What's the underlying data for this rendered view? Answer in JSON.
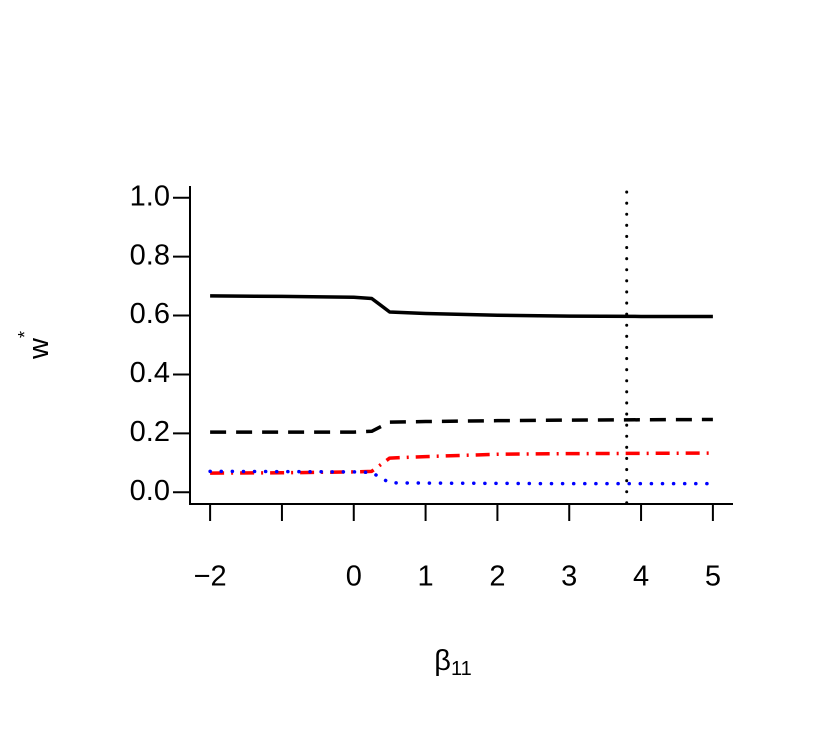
{
  "chart_data": {
    "type": "line",
    "xlabel": {
      "base": "β",
      "subscript": "11"
    },
    "ylabel": {
      "base": "w",
      "superscript": "*"
    },
    "x": [
      -2,
      -1,
      0,
      0.25,
      0.5,
      1,
      2,
      3,
      4,
      5
    ],
    "series": [
      {
        "color": "#000000",
        "linestyle": "solid",
        "values": [
          0.667,
          0.665,
          0.662,
          0.658,
          0.612,
          0.607,
          0.601,
          0.598,
          0.597,
          0.597
        ]
      },
      {
        "color": "#000000",
        "linestyle": "dashed",
        "values": [
          0.204,
          0.204,
          0.204,
          0.207,
          0.238,
          0.24,
          0.243,
          0.245,
          0.246,
          0.247
        ]
      },
      {
        "color": "#ff0000",
        "linestyle": "dashdot",
        "values": [
          0.065,
          0.066,
          0.069,
          0.071,
          0.116,
          0.121,
          0.129,
          0.131,
          0.132,
          0.133
        ]
      },
      {
        "color": "#0000ff",
        "linestyle": "dotted",
        "values": [
          0.071,
          0.07,
          0.069,
          0.067,
          0.032,
          0.031,
          0.03,
          0.029,
          0.029,
          0.029
        ]
      }
    ],
    "vline": {
      "value": 3.8,
      "color": "#000000",
      "linestyle": "dotted"
    },
    "xlim": [
      -2.28,
      5.28
    ],
    "ylim": [
      -0.04,
      1.04
    ],
    "xticks": [
      {
        "value": -2,
        "label": "−2"
      },
      {
        "value": -1,
        "label": null
      },
      0,
      1,
      2,
      3,
      4,
      5
    ],
    "yticks": [
      {
        "value": 0,
        "label": "0.0"
      },
      0.2,
      0.4,
      0.6,
      0.8,
      {
        "value": 1,
        "label": "1.0"
      }
    ],
    "grid": false
  }
}
